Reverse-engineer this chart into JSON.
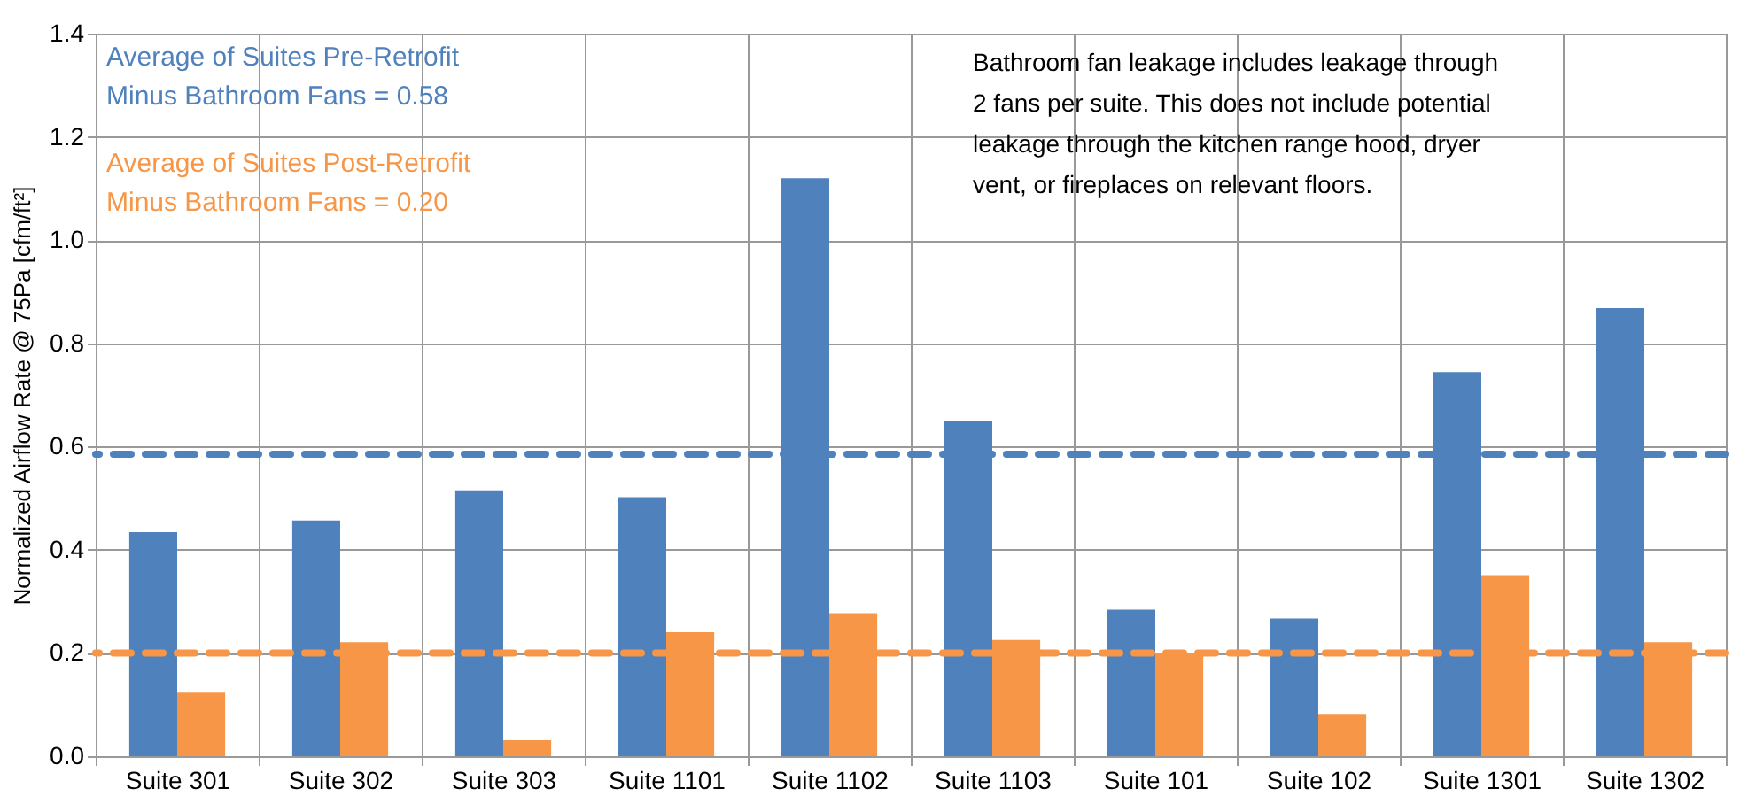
{
  "chart_data": {
    "type": "bar",
    "ylabel": "Normalized Airflow Rate @ 75Pa [cfm/ft²]",
    "categories": [
      "Suite 301",
      "Suite 302",
      "Suite 303",
      "Suite 1101",
      "Suite 1102",
      "Suite 1103",
      "Suite 101",
      "Suite 102",
      "Suite 1301",
      "Suite 1302"
    ],
    "series": [
      {
        "color": "#4f81bd",
        "values": [
          0.434,
          0.457,
          0.515,
          0.502,
          1.12,
          0.65,
          0.284,
          0.267,
          0.744,
          0.868
        ]
      },
      {
        "color": "#f79646",
        "values": [
          0.123,
          0.221,
          0.031,
          0.24,
          0.277,
          0.225,
          0.199,
          0.082,
          0.351,
          0.221
        ]
      }
    ],
    "ylim": [
      0,
      1.4
    ],
    "yticks": [
      {
        "value": 0,
        "label": "0.0"
      },
      {
        "value": 0.2,
        "label": "0.2"
      },
      {
        "value": 0.4,
        "label": "0.4"
      },
      {
        "value": 0.6,
        "label": "0.6"
      },
      {
        "value": 0.8,
        "label": "0.8"
      },
      {
        "value": 1.0,
        "label": "1.0"
      },
      {
        "value": 1.2,
        "label": "1.2"
      },
      {
        "value": 1.4,
        "label": "1.4"
      }
    ],
    "ref_lines": [
      {
        "axis": "y",
        "value": 0.585,
        "label": "Average of Suites Pre-Retrofit\nMinus Bathroom Fans = 0.58",
        "color": "#4f81bd",
        "line_style": "dashed"
      },
      {
        "axis": "y",
        "value": 0.2,
        "label": "Average of Suites Post-Retrofit\nMinus Bathroom Fans = 0.20",
        "color": "#f79646",
        "line_style": "dashed"
      }
    ],
    "annotations": [
      "Bathroom  fan leakage includes leakage through\n2 fans per suite.  This does not include potential\nleakage through the kitchen range hood, dryer\nvent, or fireplaces on relevant floors."
    ],
    "grid": true,
    "legend": false
  }
}
